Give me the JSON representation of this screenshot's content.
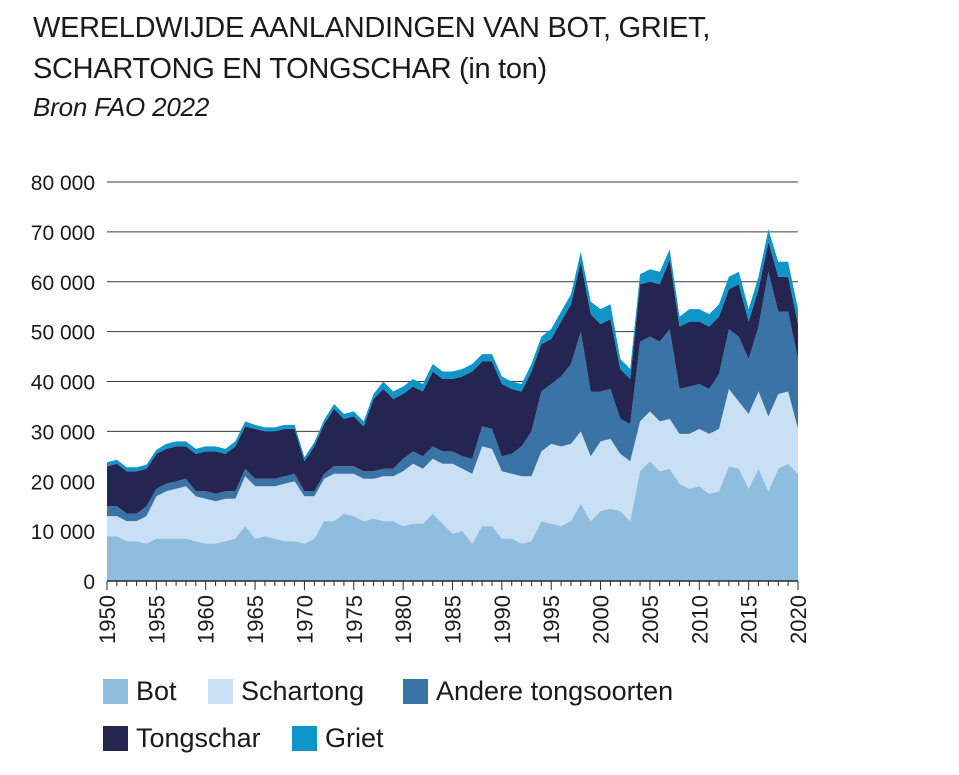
{
  "header": {
    "title_line1": "WERELDWIJDE  AANLANDINGEN VAN BOT, GRIET,",
    "title_line2": "SCHARTONG EN TONGSCHAR (in ton)",
    "source": "Bron FAO 2022"
  },
  "chart_data": {
    "type": "area",
    "stacked": true,
    "title": "WERELDWIJDE  AANLANDINGEN VAN BOT, GRIET, SCHARTONG EN TONGSCHAR (in ton)",
    "x": [
      1950,
      1951,
      1952,
      1953,
      1954,
      1955,
      1956,
      1957,
      1958,
      1959,
      1960,
      1961,
      1962,
      1963,
      1964,
      1965,
      1966,
      1967,
      1968,
      1969,
      1970,
      1971,
      1972,
      1973,
      1974,
      1975,
      1976,
      1977,
      1978,
      1979,
      1980,
      1981,
      1982,
      1983,
      1984,
      1985,
      1986,
      1987,
      1988,
      1989,
      1990,
      1991,
      1992,
      1993,
      1994,
      1995,
      1996,
      1997,
      1998,
      1999,
      2000,
      2001,
      2002,
      2003,
      2004,
      2005,
      2006,
      2007,
      2008,
      2009,
      2010,
      2011,
      2012,
      2013,
      2014,
      2015,
      2016,
      2017,
      2018,
      2019,
      2020
    ],
    "xlim": [
      1950,
      2020
    ],
    "x_ticks": [
      "1950",
      "1955",
      "1960",
      "1965",
      "1970",
      "1975",
      "1980",
      "1985",
      "1990",
      "1995",
      "2000",
      "2005",
      "2010",
      "2015",
      "2020"
    ],
    "ylim": [
      0,
      80000
    ],
    "y_ticks": [
      "0",
      "10 000",
      "20 000",
      "30 000",
      "40 000",
      "50 000",
      "60 000",
      "70 000",
      "80 000"
    ],
    "y_tick_values": [
      0,
      10000,
      20000,
      30000,
      40000,
      50000,
      60000,
      70000,
      80000
    ],
    "grid": true,
    "legend_position": "bottom",
    "series": [
      {
        "name": "Bot",
        "color": "#8fbde0",
        "values": [
          9000,
          9000,
          8000,
          8000,
          7500,
          8500,
          8500,
          8500,
          8500,
          8000,
          7500,
          7500,
          8000,
          8500,
          11000,
          8500,
          9000,
          8500,
          8000,
          8000,
          7500,
          8500,
          12000,
          12000,
          13500,
          13000,
          12000,
          12500,
          12000,
          12000,
          11000,
          11500,
          11500,
          13500,
          11500,
          9500,
          10000,
          7500,
          11000,
          11000,
          8500,
          8500,
          7500,
          8000,
          12000,
          11500,
          11000,
          12000,
          15500,
          12000,
          14000,
          14500,
          14000,
          12000,
          22000,
          24000,
          22000,
          22500,
          19500,
          18500,
          19000,
          17500,
          18000,
          23000,
          22500,
          18500,
          22500,
          18000,
          22500,
          23500,
          21500
        ]
      },
      {
        "name": "Schartong",
        "color": "#c9dff3",
        "values": [
          4000,
          4000,
          4000,
          4000,
          5500,
          8500,
          9500,
          10000,
          10500,
          9000,
          9000,
          8500,
          8500,
          8000,
          10000,
          10500,
          10000,
          10500,
          11500,
          12000,
          9500,
          8500,
          8500,
          9500,
          8000,
          8500,
          8500,
          8000,
          9000,
          9000,
          11000,
          12000,
          11000,
          11000,
          12000,
          14000,
          12500,
          14000,
          16000,
          15500,
          13500,
          13000,
          13500,
          13000,
          14000,
          16000,
          16000,
          15500,
          14500,
          13000,
          14000,
          14000,
          11500,
          12000,
          10000,
          10000,
          10000,
          10000,
          10000,
          11000,
          11500,
          12000,
          12500,
          15500,
          13500,
          15000,
          15500,
          15000,
          15000,
          14500,
          9000
        ]
      },
      {
        "name": "Andere tongsoorten",
        "color": "#3a73a6",
        "values": [
          2000,
          2000,
          1500,
          1500,
          2000,
          1500,
          1500,
          1500,
          1500,
          1000,
          1500,
          1500,
          1500,
          1500,
          1500,
          1500,
          1500,
          1500,
          1500,
          1500,
          1000,
          1000,
          1000,
          1500,
          1500,
          1500,
          1500,
          1500,
          1500,
          1500,
          2500,
          2500,
          2500,
          2500,
          2500,
          2500,
          2500,
          3000,
          4000,
          4000,
          3000,
          4000,
          6000,
          9000,
          12000,
          12000,
          14000,
          16000,
          20000,
          13000,
          10000,
          10000,
          7000,
          7500,
          16000,
          15000,
          16000,
          18000,
          9000,
          9500,
          9000,
          9000,
          11000,
          12000,
          13000,
          11000,
          13000,
          29000,
          16500,
          16000,
          14000
        ]
      },
      {
        "name": "Tongschar",
        "color": "#242551",
        "values": [
          8000,
          8500,
          8500,
          8500,
          7500,
          7000,
          7000,
          7000,
          6500,
          7500,
          8000,
          8500,
          7500,
          9000,
          8500,
          10000,
          9500,
          9500,
          9500,
          9000,
          6000,
          9000,
          10000,
          11500,
          9500,
          10000,
          9000,
          14500,
          16000,
          14000,
          13000,
          13000,
          13000,
          15000,
          14500,
          14500,
          16000,
          17500,
          13000,
          13500,
          14500,
          13000,
          11000,
          12000,
          9500,
          9000,
          11000,
          12000,
          14000,
          15500,
          13500,
          14000,
          10000,
          9000,
          11500,
          11000,
          11500,
          14000,
          12500,
          13000,
          12500,
          12500,
          11500,
          8000,
          10500,
          7500,
          7500,
          6000,
          7000,
          7000,
          7000
        ]
      },
      {
        "name": "Griet",
        "color": "#0f95c9",
        "values": [
          800,
          800,
          800,
          800,
          800,
          800,
          1000,
          1000,
          1000,
          1000,
          1000,
          1000,
          1000,
          1000,
          1000,
          800,
          800,
          800,
          800,
          800,
          800,
          800,
          800,
          1000,
          1000,
          1000,
          1000,
          1000,
          1500,
          1500,
          1500,
          1500,
          1500,
          1500,
          1500,
          1500,
          1500,
          1500,
          1500,
          1500,
          1500,
          1500,
          1500,
          1500,
          1500,
          2000,
          2000,
          2000,
          2000,
          2500,
          3000,
          3000,
          2000,
          2000,
          2000,
          2500,
          2500,
          2000,
          2000,
          2500,
          2500,
          2500,
          2500,
          2500,
          2500,
          2500,
          2500,
          2500,
          3000,
          3000,
          3000
        ]
      }
    ]
  }
}
